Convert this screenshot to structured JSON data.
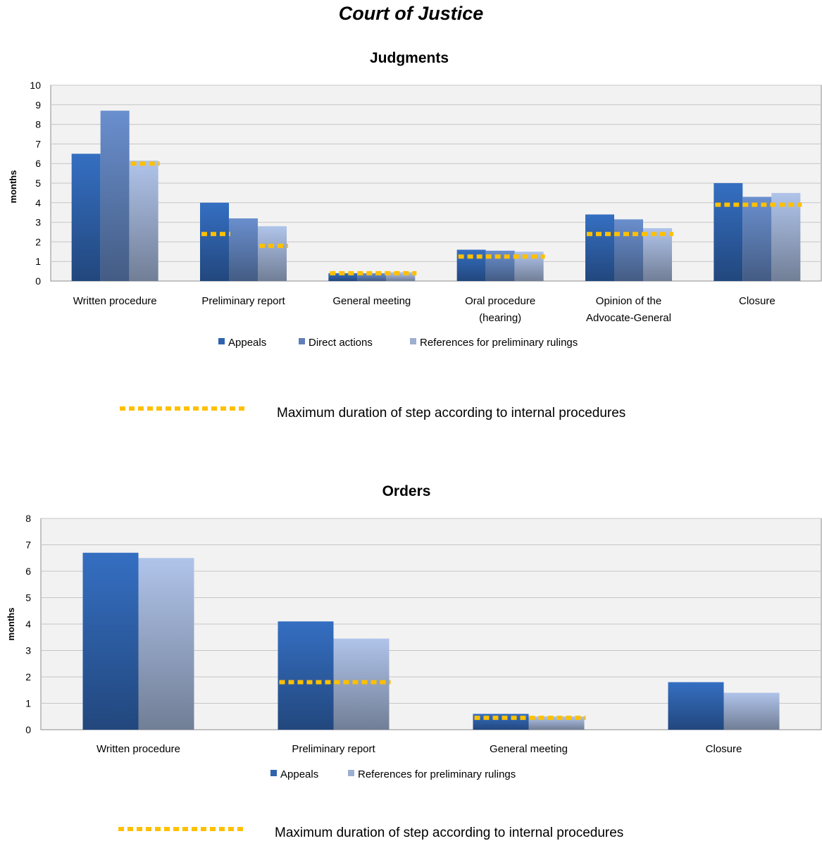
{
  "page_title": "Court of Justice",
  "colors": {
    "appeals": "#2f63ad",
    "direct_actions": "#5f80b8",
    "references": "#9dafd1",
    "max_marker": "#ffc000",
    "grid": "#c6c6c6",
    "plot_bg": "#f2f2f2"
  },
  "legend_max_label": "Maximum duration of step according to internal procedures",
  "chart_data": [
    {
      "type": "bar",
      "title": "Judgments",
      "ylabel": "months",
      "xlabel": "",
      "ylim": [
        0,
        10
      ],
      "yticks": [
        0,
        1,
        2,
        3,
        4,
        5,
        6,
        7,
        8,
        9,
        10
      ],
      "grid": true,
      "legend_position": "bottom",
      "categories": [
        [
          "Written procedure"
        ],
        [
          "Preliminary report"
        ],
        [
          "General meeting"
        ],
        [
          "Oral procedure",
          "(hearing)"
        ],
        [
          "Opinion of the",
          "Advocate-General"
        ],
        [
          "Closure"
        ]
      ],
      "series": [
        {
          "name": "Appeals",
          "values": [
            6.5,
            4.0,
            0.4,
            1.6,
            3.4,
            5.0
          ]
        },
        {
          "name": "Direct actions",
          "values": [
            8.7,
            3.2,
            0.4,
            1.55,
            3.15,
            4.3
          ]
        },
        {
          "name": "References for preliminary rulings",
          "values": [
            6.15,
            2.8,
            0.45,
            1.5,
            2.7,
            4.5
          ]
        }
      ],
      "max_duration": [
        {
          "category": 0,
          "from_series": 2,
          "to_series": 2,
          "value": 6.0
        },
        {
          "category": 1,
          "from_series": 0,
          "to_series": 0,
          "value": 2.4
        },
        {
          "category": 1,
          "from_series": 2,
          "to_series": 2,
          "value": 1.8
        },
        {
          "category": 2,
          "from_series": 0,
          "to_series": 2,
          "value": 0.4
        },
        {
          "category": 3,
          "from_series": 0,
          "to_series": 2,
          "value": 1.25
        },
        {
          "category": 4,
          "from_series": 0,
          "to_series": 2,
          "value": 2.4
        },
        {
          "category": 5,
          "from_series": 0,
          "to_series": 2,
          "value": 3.9
        }
      ]
    },
    {
      "type": "bar",
      "title": "Orders",
      "ylabel": "months",
      "xlabel": "",
      "ylim": [
        0,
        8
      ],
      "yticks": [
        0,
        1,
        2,
        3,
        4,
        5,
        6,
        7,
        8
      ],
      "grid": true,
      "legend_position": "bottom",
      "categories": [
        [
          "Written procedure"
        ],
        [
          "Preliminary report"
        ],
        [
          "General meeting"
        ],
        [
          "Closure"
        ]
      ],
      "series": [
        {
          "name": "Appeals",
          "values": [
            6.7,
            4.1,
            0.6,
            1.8
          ]
        },
        {
          "name": "References for preliminary rulings",
          "values": [
            6.5,
            3.45,
            0.5,
            1.4
          ]
        }
      ],
      "max_duration": [
        {
          "category": 1,
          "from_series": 0,
          "to_series": 1,
          "value": 1.8
        },
        {
          "category": 2,
          "from_series": 0,
          "to_series": 1,
          "value": 0.45
        }
      ]
    }
  ]
}
